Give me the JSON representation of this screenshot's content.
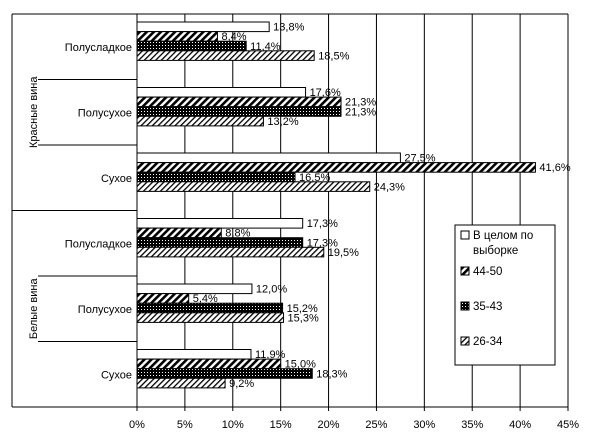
{
  "chart_data": {
    "type": "bar",
    "orientation": "horizontal",
    "title": "",
    "xlabel": "",
    "ylabel": "",
    "xlim": [
      0,
      45
    ],
    "x_ticks": [
      "0%",
      "5%",
      "10%",
      "15%",
      "20%",
      "25%",
      "30%",
      "35%",
      "40%",
      "45%"
    ],
    "groups": [
      "Красные вина",
      "Белые вина"
    ],
    "categories": [
      {
        "label": "Полусладкое",
        "group": "Красные вина"
      },
      {
        "label": "Полусухое",
        "group": "Красные вина"
      },
      {
        "label": "Сухое",
        "group": "Красные вина"
      },
      {
        "label": "Полусладкое",
        "group": "Белые вина"
      },
      {
        "label": "Полусухое",
        "group": "Белые вина"
      },
      {
        "label": "Сухое",
        "group": "Белые вина"
      }
    ],
    "series": [
      {
        "name": "В целом по выборке",
        "pattern": "white",
        "values": [
          13.8,
          17.6,
          27.5,
          17.3,
          12.0,
          11.9
        ],
        "labels": [
          "13,8%",
          "17,6%",
          "27,5%",
          "17,3%",
          "12,0%",
          "11,9%"
        ]
      },
      {
        "name": "44-50",
        "pattern": "diag-bold",
        "values": [
          8.4,
          21.3,
          41.6,
          8.8,
          5.4,
          15.0
        ],
        "labels": [
          "8,4%",
          "21,3%",
          "41,6%",
          "8,8%",
          "5,4%",
          "15,0%"
        ]
      },
      {
        "name": "35-43",
        "pattern": "dense",
        "values": [
          11.4,
          21.3,
          16.5,
          17.3,
          15.2,
          18.3
        ],
        "labels": [
          "11,4%",
          "21,3%",
          "16,5%",
          "17,3%",
          "15,2%",
          "18,3%"
        ]
      },
      {
        "name": "26-34",
        "pattern": "diag-thin",
        "values": [
          18.5,
          13.2,
          24.3,
          19.5,
          15.3,
          9.2
        ],
        "labels": [
          "18,5%",
          "13,2%",
          "24,3%",
          "19,5%",
          "15,3%",
          "9,2%"
        ]
      }
    ],
    "legend": {
      "placement": "right-bottom",
      "entries": [
        "В целом по выборке",
        "44-50",
        "35-43",
        "26-34"
      ],
      "first_entry_lines": [
        "В целом по",
        "выборке"
      ]
    }
  }
}
